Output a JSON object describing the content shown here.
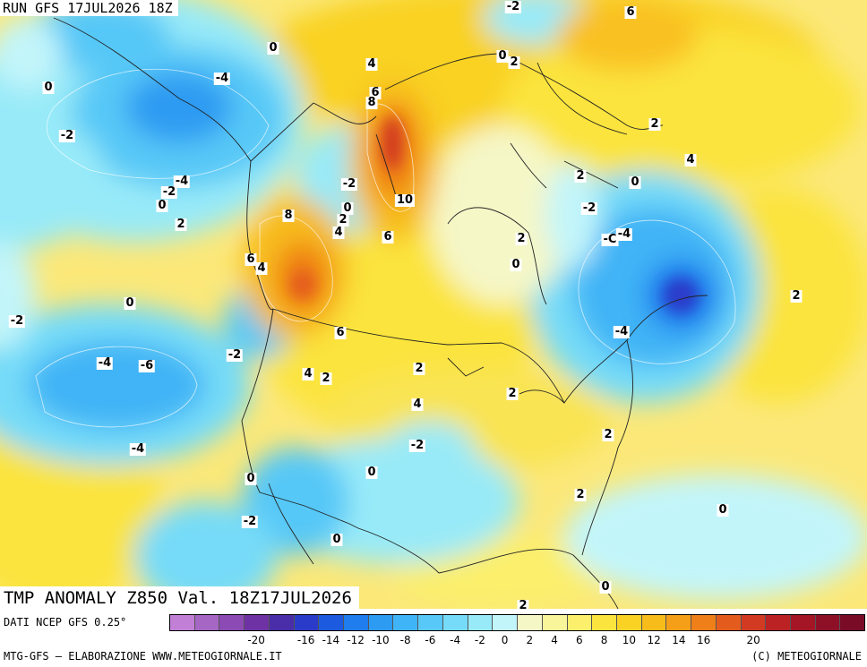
{
  "header": {
    "run": "RUN GFS 17JUL2026 18Z"
  },
  "title": "TMP ANOMALY Z850 Val. 18Z17JUL2026",
  "footer": {
    "dati": "DATI NCEP GFS 0.25°",
    "credit_left": "MTG-GFS – ELABORAZIONE WWW.METEOGIORNALE.IT",
    "credit_right": "(C) METEOGIORNALE"
  },
  "legend": {
    "colors": [
      "#c27fd6",
      "#a566c4",
      "#8c4bb4",
      "#6f32a4",
      "#4a2da8",
      "#2a3bc9",
      "#1c5be0",
      "#1f7ded",
      "#2d9bf2",
      "#3fb4f6",
      "#57c8f7",
      "#76dbf8",
      "#98eaf8",
      "#c2f5fa",
      "#f5f7c7",
      "#f9f59b",
      "#fbef6c",
      "#fbe43d",
      "#f9d224",
      "#f7bb1a",
      "#f49f17",
      "#ef7f18",
      "#e45b1e",
      "#d23a22",
      "#bb2224",
      "#a41625",
      "#8e1027",
      "#7a0b27"
    ],
    "ticks": [
      "-20",
      "-18",
      "-16",
      "-14",
      "-12",
      "-10",
      "-8",
      "-6",
      "-4",
      "-2",
      "0",
      "2",
      "4",
      "6",
      "8",
      "10",
      "12",
      "14",
      "16",
      "18",
      "20"
    ],
    "tick_display": [
      "-20",
      "-16",
      "-14",
      "-12",
      "-10",
      "-8",
      "-6",
      "-4",
      "-2",
      "0",
      "2",
      "4",
      "6",
      "8",
      "10",
      "12",
      "14",
      "16",
      "20"
    ]
  },
  "contour_labels": [
    {
      "id": "l1",
      "text": "-2"
    },
    {
      "id": "l2",
      "text": "6"
    },
    {
      "id": "l3",
      "text": "0"
    },
    {
      "id": "l4",
      "text": "-4"
    },
    {
      "id": "l5",
      "text": "0"
    },
    {
      "id": "l6",
      "text": "4"
    },
    {
      "id": "l7",
      "text": "0"
    },
    {
      "id": "l8",
      "text": "2"
    },
    {
      "id": "l9",
      "text": "-2"
    },
    {
      "id": "l10",
      "text": "6"
    },
    {
      "id": "l11",
      "text": "8"
    },
    {
      "id": "l12",
      "text": "2"
    },
    {
      "id": "l13",
      "text": "4"
    },
    {
      "id": "l14",
      "text": "-2"
    },
    {
      "id": "l15",
      "text": "-4"
    },
    {
      "id": "l16",
      "text": "-2"
    },
    {
      "id": "l17",
      "text": "0"
    },
    {
      "id": "l18",
      "text": "0"
    },
    {
      "id": "l19",
      "text": "10"
    },
    {
      "id": "l20",
      "text": "2"
    },
    {
      "id": "l21",
      "text": "2"
    },
    {
      "id": "l22",
      "text": "8"
    },
    {
      "id": "l23",
      "text": "2"
    },
    {
      "id": "l24",
      "text": "4"
    },
    {
      "id": "l25",
      "text": "6"
    },
    {
      "id": "l26",
      "text": "-2"
    },
    {
      "id": "l27",
      "text": "0"
    },
    {
      "id": "l28",
      "text": "-C"
    },
    {
      "id": "l29",
      "text": "-4"
    },
    {
      "id": "l30",
      "text": "6"
    },
    {
      "id": "l31",
      "text": "4"
    },
    {
      "id": "l32",
      "text": "2"
    },
    {
      "id": "l33",
      "text": "0"
    },
    {
      "id": "l34",
      "text": "-2"
    },
    {
      "id": "l35",
      "text": "0"
    },
    {
      "id": "l36",
      "text": "2"
    },
    {
      "id": "l37",
      "text": "6"
    },
    {
      "id": "l38",
      "text": "-4"
    },
    {
      "id": "l39",
      "text": "-2"
    },
    {
      "id": "l40",
      "text": "-4"
    },
    {
      "id": "l41",
      "text": "-6"
    },
    {
      "id": "l42",
      "text": "4"
    },
    {
      "id": "l43",
      "text": "2"
    },
    {
      "id": "l44",
      "text": "2"
    },
    {
      "id": "l45",
      "text": "2"
    },
    {
      "id": "l46",
      "text": "4"
    },
    {
      "id": "l47",
      "text": "-4"
    },
    {
      "id": "l48",
      "text": "-2"
    },
    {
      "id": "l49",
      "text": "2"
    },
    {
      "id": "l50",
      "text": "0"
    },
    {
      "id": "l51",
      "text": "0"
    },
    {
      "id": "l52",
      "text": "2"
    },
    {
      "id": "l53",
      "text": "-2"
    },
    {
      "id": "l54",
      "text": "0"
    },
    {
      "id": "l55",
      "text": "0"
    },
    {
      "id": "l56",
      "text": "0"
    },
    {
      "id": "l57",
      "text": "2"
    }
  ]
}
